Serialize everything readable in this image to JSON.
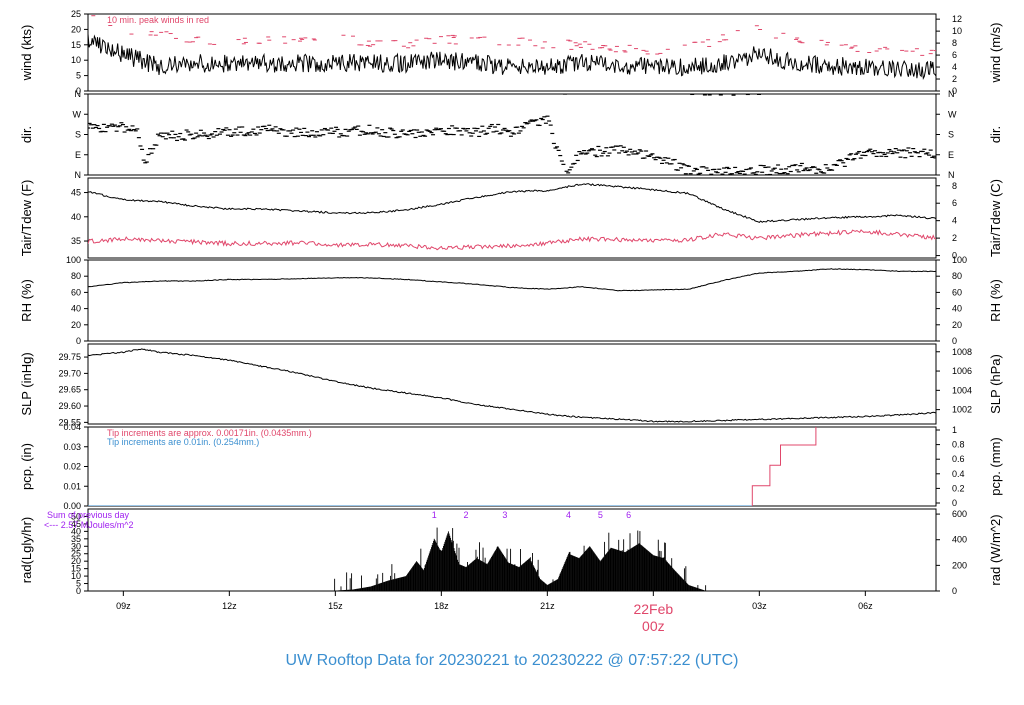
{
  "title": "UW Rooftop Data for 20230221  to  20230222 @ 07:57:22  (UTC)",
  "colors": {
    "black": "#000000",
    "red": "#e0476b",
    "blue": "#3b8fd0",
    "purple": "#a020f0",
    "title": "#3b8fd0"
  },
  "x_axis": {
    "ticks": [
      {
        "label": "09z",
        "hour": 9
      },
      {
        "label": "12z",
        "hour": 12
      },
      {
        "label": "15z",
        "hour": 15
      },
      {
        "label": "18z",
        "hour": 18
      },
      {
        "label": "21z",
        "hour": 21
      },
      {
        "label": "03z",
        "hour": 27
      },
      {
        "label": "06z",
        "hour": 30
      }
    ],
    "date_label": "22Feb",
    "date_sublabel": "00z",
    "date_hour": 24,
    "range": [
      8.0,
      32.0
    ]
  },
  "chart_data": [
    {
      "type": "line",
      "name": "wind",
      "ylabel_left": "wind (kts)",
      "ylabel_right": "wind (m/s)",
      "ylim": [
        0,
        25
      ],
      "yticks": [
        0,
        5,
        10,
        15,
        20,
        25
      ],
      "right_ticks": [
        0,
        2,
        4,
        6,
        8,
        10,
        12
      ],
      "annotation": "10 min. peak winds in red",
      "x": [
        8,
        8.5,
        9,
        9.5,
        10,
        11,
        12,
        13,
        14,
        15,
        16,
        17,
        18,
        19,
        20,
        21,
        22,
        23,
        24,
        25,
        26,
        27,
        28,
        29,
        30,
        31,
        32
      ],
      "series": [
        {
          "color": "red",
          "values": [
            25,
            22,
            20,
            17,
            19,
            16,
            17,
            16,
            17,
            17,
            16,
            15,
            17,
            16,
            16,
            15,
            15,
            14,
            13,
            14,
            17,
            20,
            16,
            15,
            14,
            13,
            13
          ]
        },
        {
          "color": "black",
          "values": [
            16,
            14,
            12,
            10,
            8,
            9,
            9,
            9,
            9,
            9,
            9,
            9,
            10,
            9,
            8,
            8,
            9,
            8,
            8,
            8,
            9,
            12,
            9,
            8,
            8,
            7,
            7
          ]
        }
      ]
    },
    {
      "type": "scatter",
      "name": "dir",
      "ylabel_left": "dir.",
      "ylabel_right": "dir.",
      "ylim": [
        0,
        360
      ],
      "ytick_labels": [
        "N",
        "E",
        "S",
        "W",
        "N"
      ],
      "ytick_values": [
        0,
        90,
        180,
        270,
        360
      ],
      "x": [
        8,
        9,
        9.4,
        9.6,
        10,
        11,
        12,
        13,
        14,
        15,
        16,
        17,
        18,
        19,
        19.5,
        20,
        20.5,
        21,
        21.5,
        22,
        23,
        24,
        25,
        26,
        27,
        28,
        29,
        30,
        31,
        32
      ],
      "values": [
        210,
        210,
        200,
        60,
        170,
        180,
        190,
        200,
        190,
        190,
        200,
        180,
        200,
        190,
        210,
        180,
        230,
        250,
        10,
        100,
        110,
        90,
        20,
        15,
        20,
        30,
        30,
        100,
        100,
        90
      ]
    },
    {
      "type": "line",
      "name": "temperature",
      "ylabel_left": "Tair/Tdew (F)",
      "ylabel_right": "Tair/Tdew (C)",
      "ylim": [
        31.5,
        48
      ],
      "yticks": [
        35,
        40,
        45
      ],
      "right_ticks": [
        0,
        2,
        4,
        6,
        8
      ],
      "x": [
        8,
        9,
        10,
        11,
        12,
        13,
        14,
        15,
        16,
        17,
        18,
        19,
        20,
        21,
        22,
        23,
        24,
        25,
        26,
        27,
        28,
        29,
        30,
        31,
        32
      ],
      "series": [
        {
          "name": "Tair",
          "color": "black",
          "values": [
            45.2,
            43.5,
            43.2,
            42.2,
            41.6,
            41.6,
            41.2,
            40.8,
            40.8,
            41.4,
            42.6,
            44.0,
            45.2,
            45.4,
            46.8,
            46.2,
            45.6,
            44.8,
            41.5,
            39.0,
            39.4,
            39.8,
            40.0,
            40.3,
            39.6
          ]
        },
        {
          "name": "Tdew",
          "color": "red",
          "values": [
            34.9,
            35.4,
            35.0,
            34.8,
            34.5,
            34.5,
            34.6,
            34.2,
            34.3,
            34.0,
            33.6,
            33.8,
            34.0,
            34.5,
            35.4,
            35.3,
            35.0,
            35.2,
            36.5,
            35.5,
            36.2,
            36.6,
            37.0,
            36.4,
            35.6
          ]
        }
      ]
    },
    {
      "type": "line",
      "name": "rh",
      "ylabel_left": "RH (%)",
      "ylabel_right": "RH (%)",
      "ylim": [
        0,
        100
      ],
      "yticks": [
        0,
        20,
        40,
        60,
        80,
        100
      ],
      "x": [
        8,
        9,
        10,
        11,
        12,
        13,
        14,
        15,
        16,
        17,
        18,
        19,
        20,
        21,
        22,
        23,
        24,
        25,
        26,
        27,
        28,
        29,
        30,
        31,
        32
      ],
      "series": [
        {
          "color": "black",
          "values": [
            67,
            72,
            74,
            74,
            76,
            76,
            77,
            78,
            78,
            76,
            73,
            70,
            66,
            64,
            67,
            62,
            63,
            64,
            75,
            84,
            86,
            89,
            88,
            86,
            86
          ]
        }
      ]
    },
    {
      "type": "line",
      "name": "slp",
      "ylabel_left": "SLP (inHg)",
      "ylabel_right": "SLP (hPa)",
      "ylim": [
        29.545,
        29.79
      ],
      "yticks": [
        29.55,
        29.6,
        29.65,
        29.7,
        29.75
      ],
      "right_ticks": [
        1002,
        1004,
        1006,
        1008
      ],
      "x": [
        8,
        9,
        9.5,
        10,
        11,
        12,
        13,
        14,
        15,
        16,
        17,
        18,
        19,
        20,
        21,
        22,
        23,
        24,
        25,
        26,
        27,
        28,
        29,
        30,
        31,
        32
      ],
      "series": [
        {
          "color": "black",
          "values": [
            29.755,
            29.765,
            29.775,
            29.765,
            29.755,
            29.74,
            29.72,
            29.7,
            29.675,
            29.655,
            29.64,
            29.625,
            29.605,
            29.59,
            29.575,
            29.565,
            29.56,
            29.553,
            29.553,
            29.556,
            29.559,
            29.562,
            29.565,
            29.568,
            29.573,
            29.58
          ]
        }
      ]
    },
    {
      "type": "line",
      "name": "precip",
      "ylabel_left": "pcp. (in)",
      "ylabel_right": "pcp. (mm)",
      "ylim": [
        0,
        0.04
      ],
      "yticks": [
        0.0,
        0.01,
        0.02,
        0.03,
        0.04
      ],
      "right_ticks": [
        0,
        0.2,
        0.4,
        0.6,
        0.8,
        1
      ],
      "note_red": "Tip increments are approx. 0.00171in. (0.0435mm.)",
      "note_blue": "Tip increments are 0.01in. (0.254mm.)",
      "series": [
        {
          "color": "blue",
          "x": [
            8,
            26.8
          ],
          "values": [
            0,
            0
          ]
        },
        {
          "color": "red",
          "x": [
            26.8,
            26.8,
            27.3,
            27.3,
            27.6,
            27.6,
            28.0,
            28.0,
            28.6,
            28.6,
            32
          ],
          "values": [
            0,
            0.0103,
            0.0103,
            0.0206,
            0.0206,
            0.0309,
            0.0309,
            0.0309,
            0.0309,
            0.0412,
            0.0412
          ]
        }
      ]
    },
    {
      "type": "area",
      "name": "radiation",
      "ylabel_left": "rad(Lgly/hr)",
      "ylabel_right": "rad (W/m^2)",
      "ylim": [
        0,
        55
      ],
      "yticks": [
        0,
        5,
        10,
        15,
        20,
        25,
        30,
        35,
        40,
        45,
        50
      ],
      "right_ticks": [
        0,
        200,
        400,
        600
      ],
      "note_line1": "Sum of previous day",
      "note_line2": "<--- 2.57 MJoules/m^2",
      "markers": [
        {
          "label": "1",
          "hour": 17.8
        },
        {
          "label": "2",
          "hour": 18.7
        },
        {
          "label": "3",
          "hour": 19.8
        },
        {
          "label": "4",
          "hour": 21.6
        },
        {
          "label": "5",
          "hour": 22.5
        },
        {
          "label": "6",
          "hour": 23.3
        }
      ],
      "x": [
        14.8,
        15.5,
        16.0,
        16.5,
        17.0,
        17.3,
        17.5,
        17.8,
        18.0,
        18.2,
        18.5,
        18.7,
        19.0,
        19.3,
        19.6,
        19.9,
        20.2,
        20.5,
        20.8,
        21.0,
        21.3,
        21.6,
        21.9,
        22.2,
        22.5,
        22.8,
        23.2,
        23.6,
        24.0,
        24.3,
        24.6,
        25.0,
        25.5
      ],
      "values": [
        0,
        1,
        3,
        7,
        10,
        20,
        14,
        35,
        26,
        40,
        18,
        16,
        22,
        18,
        30,
        19,
        16,
        22,
        8,
        4,
        8,
        25,
        22,
        30,
        20,
        29,
        26,
        32,
        24,
        22,
        14,
        4,
        0
      ]
    }
  ]
}
